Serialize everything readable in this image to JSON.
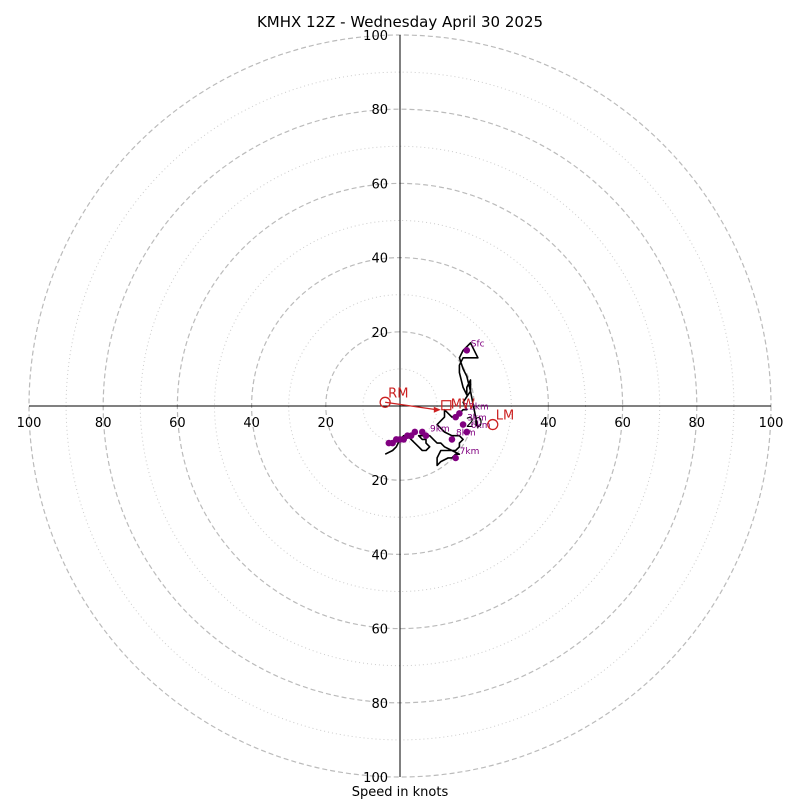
{
  "chart_data": {
    "type": "hodograph",
    "title": "KMHX 12Z - Wednesday April 30 2025",
    "xlabel": "Speed in knots",
    "max_speed": 100,
    "rings_major": [
      20,
      40,
      60,
      80,
      100
    ],
    "rings_minor": [
      10,
      30,
      50,
      70,
      90
    ],
    "tick_labels": {
      "x_left": [
        "100",
        "80",
        "60",
        "40",
        "20"
      ],
      "x_right": [
        "20",
        "40",
        "60",
        "80",
        "100"
      ],
      "y_top": [
        "20",
        "40",
        "60",
        "80",
        "100"
      ],
      "y_bottom": [
        "20",
        "40",
        "60",
        "80",
        "100"
      ]
    },
    "trace": [
      [
        21,
        -6
      ],
      [
        19,
        4
      ],
      [
        18,
        8
      ],
      [
        17,
        10
      ],
      [
        16,
        13
      ],
      [
        17,
        15
      ],
      [
        19,
        17
      ],
      [
        21,
        13
      ],
      [
        18,
        13
      ],
      [
        17,
        13
      ],
      [
        16,
        11
      ],
      [
        16,
        9
      ],
      [
        17,
        5
      ],
      [
        18,
        3
      ],
      [
        18,
        5
      ],
      [
        19,
        7
      ],
      [
        19,
        4
      ],
      [
        17,
        1
      ],
      [
        18,
        -1
      ],
      [
        17,
        -1
      ],
      [
        16,
        -2
      ],
      [
        14,
        -3
      ],
      [
        13,
        -2
      ],
      [
        12,
        -1
      ],
      [
        12,
        -3
      ],
      [
        11,
        -4
      ],
      [
        10,
        -5
      ],
      [
        11,
        -6
      ],
      [
        12,
        -7
      ],
      [
        14,
        -8
      ],
      [
        15,
        -8
      ],
      [
        16,
        -8
      ],
      [
        17,
        -9
      ],
      [
        16,
        -10
      ],
      [
        16,
        -11
      ],
      [
        15,
        -12
      ],
      [
        14,
        -12
      ],
      [
        13,
        -12
      ],
      [
        11,
        -12
      ],
      [
        10,
        -14
      ],
      [
        10,
        -16
      ],
      [
        11,
        -15
      ],
      [
        13,
        -14
      ],
      [
        14,
        -14
      ],
      [
        15,
        -13
      ],
      [
        16,
        -13
      ],
      [
        14,
        -12
      ],
      [
        12,
        -11
      ],
      [
        11,
        -10
      ],
      [
        10,
        -10
      ],
      [
        9,
        -9
      ],
      [
        8,
        -8
      ],
      [
        7,
        -8
      ],
      [
        6,
        -8
      ],
      [
        5,
        -8
      ],
      [
        6,
        -9
      ],
      [
        7,
        -9
      ],
      [
        7,
        -10
      ],
      [
        8,
        -11
      ],
      [
        7,
        -12
      ],
      [
        6,
        -12
      ],
      [
        5,
        -11
      ],
      [
        4,
        -10
      ],
      [
        3,
        -9
      ],
      [
        2,
        -8
      ],
      [
        1,
        -8
      ],
      [
        0,
        -9
      ],
      [
        -1,
        -11
      ],
      [
        -2,
        -12
      ],
      [
        -4,
        -13
      ]
    ],
    "height_points": [
      {
        "u": 18,
        "v": 15,
        "label": "Sfc"
      },
      {
        "u": 15,
        "v": -3,
        "label": ""
      },
      {
        "u": 16,
        "v": -2,
        "label": "12km"
      },
      {
        "u": 17,
        "v": -5,
        "label": "3km"
      },
      {
        "u": 18,
        "v": -7,
        "label": "6km"
      },
      {
        "u": 14,
        "v": -9,
        "label": "8km"
      },
      {
        "u": 15,
        "v": -14,
        "label": "7km"
      },
      {
        "u": 7,
        "v": -8,
        "label": "9km"
      },
      {
        "u": 6,
        "v": -7,
        "label": ""
      },
      {
        "u": 4,
        "v": -7,
        "label": ""
      },
      {
        "u": 3,
        "v": -8,
        "label": ""
      },
      {
        "u": 2,
        "v": -8,
        "label": ""
      },
      {
        "u": 1,
        "v": -9,
        "label": ""
      },
      {
        "u": 0,
        "v": -9,
        "label": ""
      },
      {
        "u": -1,
        "v": -9,
        "label": ""
      },
      {
        "u": -2,
        "v": -10,
        "label": ""
      },
      {
        "u": -3,
        "v": -10,
        "label": ""
      }
    ],
    "storm_motion": [
      {
        "label": "RM",
        "u": -4,
        "v": 1
      },
      {
        "label": "LM",
        "u": 25,
        "v": -5
      },
      {
        "label": "MW",
        "u": 11,
        "v": -1
      }
    ],
    "colors": {
      "trace": "#000000",
      "height_points": "#800080",
      "storm_motion": "#cc2222",
      "ring_major": "#bbbbbb",
      "ring_minor": "#cccccc",
      "axis": "#000000"
    }
  }
}
